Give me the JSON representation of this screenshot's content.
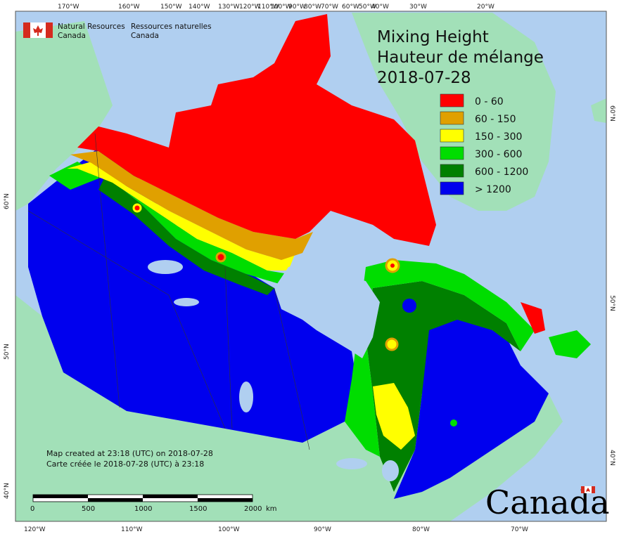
{
  "map": {
    "title_en": "Mixing Height",
    "title_fr": "Hauteur de mélange",
    "date": "2018-07-28",
    "agency_en_line1": "Natural Resources",
    "agency_en_line2": "Canada",
    "agency_fr_line1": "Ressources naturelles",
    "agency_fr_line2": "Canada",
    "wordmark": "Canada",
    "note_en": "Map created at 23:18 (UTC) on 2018-07-28",
    "note_fr": "Carte créée le 2018-07-28 (UTC) à 23:18",
    "legend": [
      {
        "label": "0 - 60",
        "color": "#ff0000"
      },
      {
        "label": "60 - 150",
        "color": "#e0a000"
      },
      {
        "label": "150 - 300",
        "color": "#ffff00"
      },
      {
        "label": "300 - 600",
        "color": "#00dd00"
      },
      {
        "label": "600 - 1200",
        "color": "#008000"
      },
      {
        "label": "> 1200",
        "color": "#0000ee"
      }
    ],
    "scalebar": {
      "labels": [
        "0",
        "500",
        "1000",
        "1500",
        "2000"
      ],
      "unit": "km"
    },
    "top_ticks": [
      "170°W",
      "160°W",
      "150°W",
      "140°W",
      "130°W",
      "120°W",
      "110°W",
      "100°W",
      "90°W",
      "80°W",
      "70°W",
      "60°W",
      "50°W",
      "40°W",
      "30°W",
      "20°W"
    ],
    "bottom_ticks": [
      "120°W",
      "110°W",
      "100°W",
      "90°W",
      "80°W",
      "70°W"
    ],
    "left_ticks": [
      "60°N",
      "50°N",
      "40°N"
    ],
    "right_ticks": [
      "60°N",
      "50°N",
      "40°N"
    ],
    "colors": {
      "ocean": "#b0cff0",
      "land": "#a2e0b8",
      "lake": "#b0cff0"
    }
  }
}
